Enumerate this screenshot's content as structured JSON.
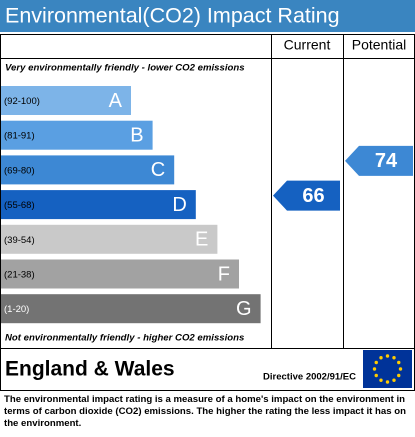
{
  "header": {
    "title": "Environmental(CO2) Impact Rating"
  },
  "columns": {
    "current": "Current",
    "potential": "Potential"
  },
  "top_note": "Very environmentally friendly - lower CO2 emissions",
  "bottom_note": "Not environmentally friendly - higher CO2 emissions",
  "bands": [
    {
      "range": "(92-100)",
      "letter": "A",
      "color": "#7db4e8"
    },
    {
      "range": "(81-91)",
      "letter": "B",
      "color": "#5a9fe2"
    },
    {
      "range": "(69-80)",
      "letter": "C",
      "color": "#3d88d4"
    },
    {
      "range": "(55-68)",
      "letter": "D",
      "color": "#1561c1"
    },
    {
      "range": "(39-54)",
      "letter": "E",
      "color": "#c9c9c9"
    },
    {
      "range": "(21-38)",
      "letter": "F",
      "color": "#a2a2a2"
    },
    {
      "range": "(1-20)",
      "letter": "G",
      "color": "#737373"
    }
  ],
  "current": {
    "value": 66,
    "color": "#1561c1"
  },
  "potential": {
    "value": 74,
    "color": "#3d88d4"
  },
  "footer": {
    "region": "England & Wales",
    "directive": "Directive 2002/91/EC"
  },
  "description": "The environmental impact rating is a measure of a home's impact on the environment in terms of carbon dioxide (CO2) emissions. The higher the rating the less impact it has on the environment."
}
